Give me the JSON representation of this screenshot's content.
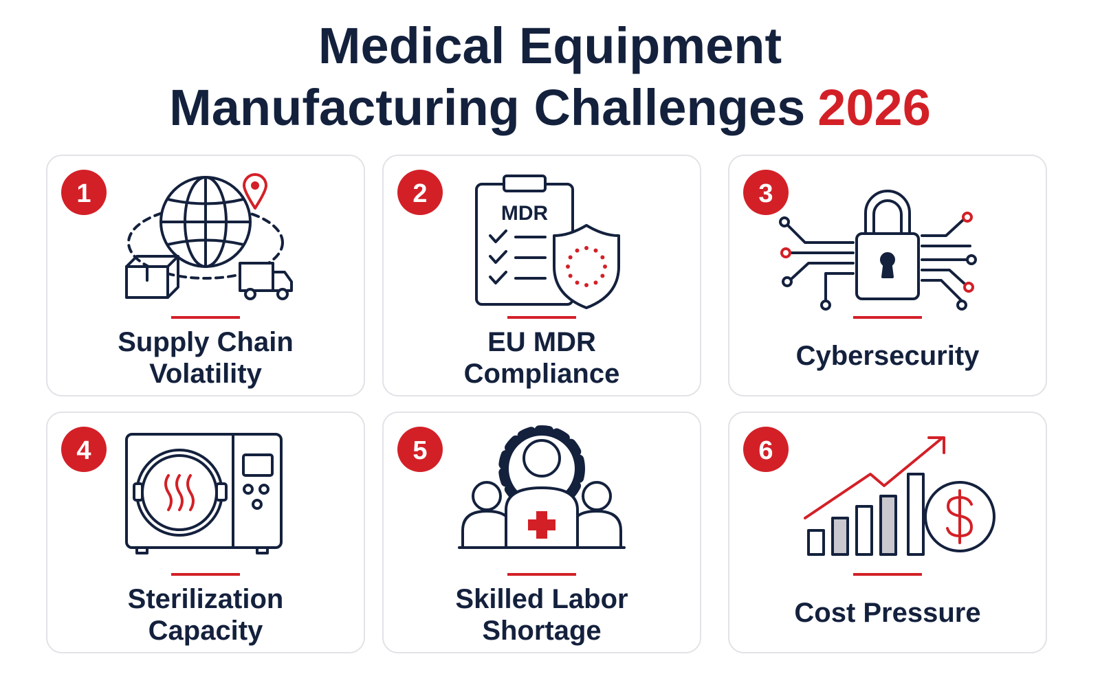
{
  "header": {
    "title_line1": "Medical Equipment",
    "title_line2": "Manufacturing Challenges",
    "title_year": "2026"
  },
  "cards": [
    {
      "number": 1,
      "label_lines": [
        "Supply Chain",
        "Volatility"
      ]
    },
    {
      "number": 2,
      "label_lines": [
        "EU MDR",
        "Compliance"
      ],
      "icon_label": "MDR"
    },
    {
      "number": 3,
      "label_lines": [
        "Cybersecurity"
      ]
    },
    {
      "number": 4,
      "label_lines": [
        "Sterilization",
        "Capacity"
      ]
    },
    {
      "number": 5,
      "label_lines": [
        "Skilled Labor",
        "Shortage"
      ]
    },
    {
      "number": 6,
      "label_lines": [
        "Cost Pressure"
      ]
    }
  ]
}
